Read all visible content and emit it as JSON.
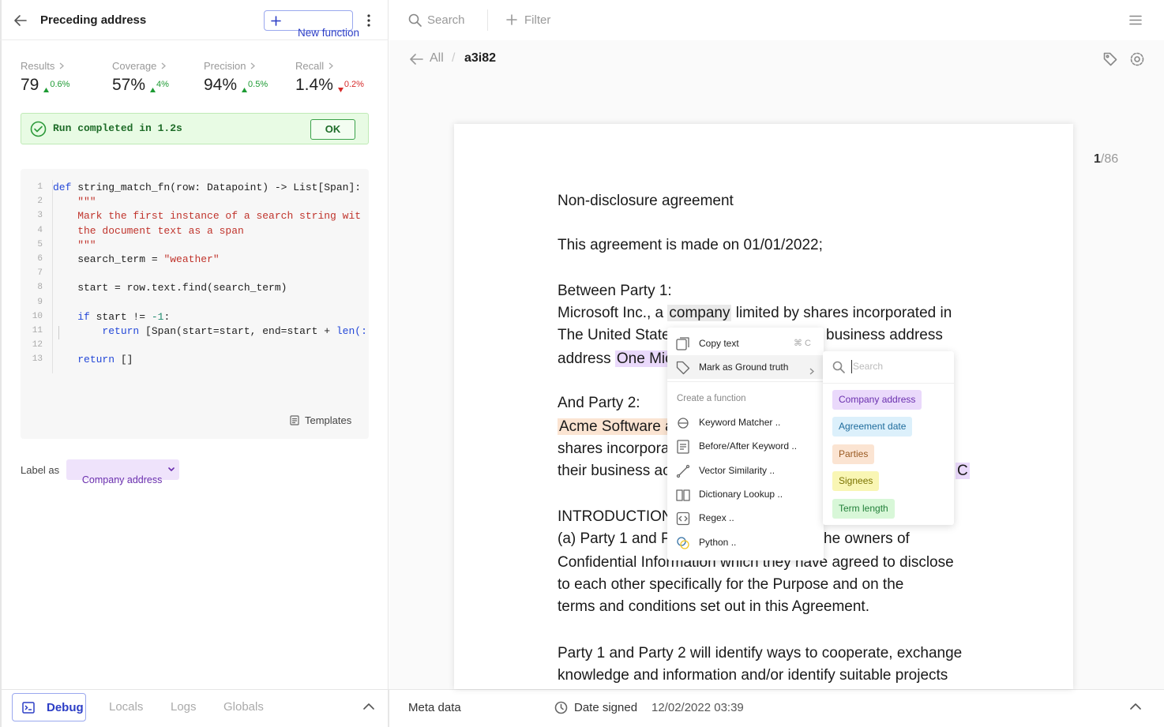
{
  "header": {
    "title": "Preceding address",
    "new_function": "New function"
  },
  "metrics": [
    {
      "label": "Results",
      "value": "79",
      "delta": "0.6%",
      "trend": "up"
    },
    {
      "label": "Coverage",
      "value": "57%",
      "delta": "4%",
      "trend": "up"
    },
    {
      "label": "Precision",
      "value": "94%",
      "delta": "0.5%",
      "trend": "up"
    },
    {
      "label": "Recall",
      "value": "1.4%",
      "delta": "0.2%",
      "trend": "down"
    }
  ],
  "run_status": {
    "message": "Run completed in 1.2s",
    "button": "OK"
  },
  "code": {
    "lines": [
      {
        "number": 1,
        "tokens": [
          {
            "k": "kw",
            "t": "def"
          },
          {
            "k": "pl",
            "t": " string_match_fn(row: Datapoint) -> List[Span]:"
          }
        ]
      },
      {
        "number": 2,
        "tokens": [
          {
            "k": "str",
            "t": "    \"\"\""
          }
        ]
      },
      {
        "number": 3,
        "tokens": [
          {
            "k": "str",
            "t": "    Mark the first instance of a search string wit"
          }
        ]
      },
      {
        "number": 4,
        "tokens": [
          {
            "k": "str",
            "t": "    the document text as a span"
          }
        ]
      },
      {
        "number": 5,
        "tokens": [
          {
            "k": "str",
            "t": "    \"\"\""
          }
        ]
      },
      {
        "number": 6,
        "tokens": [
          {
            "k": "pl",
            "t": "    search_term = "
          },
          {
            "k": "str",
            "t": "\"weather\""
          }
        ]
      },
      {
        "number": 7,
        "tokens": []
      },
      {
        "number": 8,
        "tokens": [
          {
            "k": "pl",
            "t": "    start = row.text.find(search_term)"
          }
        ]
      },
      {
        "number": 9,
        "tokens": []
      },
      {
        "number": 10,
        "tokens": [
          {
            "k": "pl",
            "t": "    "
          },
          {
            "k": "kw",
            "t": "if"
          },
          {
            "k": "pl",
            "t": " start != "
          },
          {
            "k": "num",
            "t": "-1"
          },
          {
            "k": "pl",
            "t": ":"
          }
        ]
      },
      {
        "number": 11,
        "tokens": [
          {
            "k": "pl",
            "t": "        "
          },
          {
            "k": "kw",
            "t": "return"
          },
          {
            "k": "pl",
            "t": " [Span(start=start, end=start + "
          },
          {
            "k": "kw",
            "t": "len(:"
          }
        ]
      },
      {
        "number": 12,
        "tokens": []
      },
      {
        "number": 13,
        "tokens": [
          {
            "k": "pl",
            "t": "    "
          },
          {
            "k": "kw",
            "t": "return"
          },
          {
            "k": "pl",
            "t": " []"
          }
        ]
      }
    ]
  },
  "templates": "Templates",
  "label_as": {
    "label": "Label as",
    "value": "Company address"
  },
  "debug_tabs": {
    "tabs": [
      "Debug",
      "Locals",
      "Logs",
      "Globals"
    ],
    "active": 0
  },
  "toolbar": {
    "search": "Search",
    "filter": "Filter"
  },
  "breadcrumb": {
    "root": "All",
    "current": "a3i82"
  },
  "page_counter": {
    "current": 1,
    "total": 86
  },
  "document": {
    "lines": [
      [
        [
          {
            "text": "Non-disclosure agreement"
          }
        ]
      ],
      [
        [
          {
            "text": "This agreement is made on 01/01/2022;"
          }
        ]
      ],
      [
        [
          {
            "text": "Between Party 1:"
          }
        ]
      ],
      [
        [
          {
            "text": "Microsoft Inc., a "
          },
          {
            "text": "company",
            "highlight": "gray"
          },
          {
            "text": " limited by shares incorporated in"
          }
        ]
      ],
      [
        [
          {
            "text": "The United State"
          }
        ],
        [
          {
            "text": "business address"
          }
        ]
      ],
      [
        [
          {
            "text": "address "
          },
          {
            "text": "One Mic",
            "highlight": "purple"
          }
        ]
      ],
      [
        [
          {
            "text": "And Party 2:"
          }
        ]
      ],
      [
        [
          {
            "text": "Acme Software a",
            "highlight": "orange"
          }
        ]
      ],
      [
        [
          {
            "text": "shares incorpora"
          }
        ]
      ],
      [
        [
          {
            "text": "their business ac"
          }
        ],
        [
          {
            "text": "C",
            "highlight": "purple"
          }
        ]
      ],
      [
        [
          {
            "text": "INTRODUCTION"
          }
        ]
      ],
      [
        [
          {
            "text": "(a) Party 1 and P"
          }
        ],
        [
          {
            "text": "he owners of"
          }
        ]
      ],
      [
        [
          {
            "text": "Confidential Information which they have agreed to disclose"
          }
        ]
      ],
      [
        [
          {
            "text": "to each other specifically for the Purpose and on the"
          }
        ]
      ],
      [
        [
          {
            "text": "terms and conditions set out in this Agreement."
          }
        ]
      ],
      [
        [
          {
            "text": "Party 1 and Party 2 will identify ways to cooperate, exchange"
          }
        ]
      ],
      [
        [
          {
            "text": "knowledge and information and/or identify suitable projects"
          }
        ]
      ]
    ]
  },
  "context_menu": {
    "items": [
      {
        "label": "Copy text",
        "shortcut": "⌘ C"
      },
      {
        "label": "Mark as Ground truth"
      }
    ],
    "section": "Create a function",
    "functions": [
      "Keyword Matcher ..",
      "Before/After Keyword ..",
      "Vector Similarity ..",
      "Dictionary Lookup ..",
      "Regex ..",
      "Python .."
    ]
  },
  "label_menu": {
    "search_placeholder": "Search",
    "labels": [
      {
        "name": "Company address",
        "color": "purple"
      },
      {
        "name": "Agreement date",
        "color": "blue"
      },
      {
        "name": "Parties",
        "color": "orange"
      },
      {
        "name": "Signees",
        "color": "yellow"
      },
      {
        "name": "Term length",
        "color": "green"
      }
    ]
  },
  "footer": {
    "meta": "Meta data",
    "field": "Date signed",
    "value": "12/02/2022 03:39"
  }
}
